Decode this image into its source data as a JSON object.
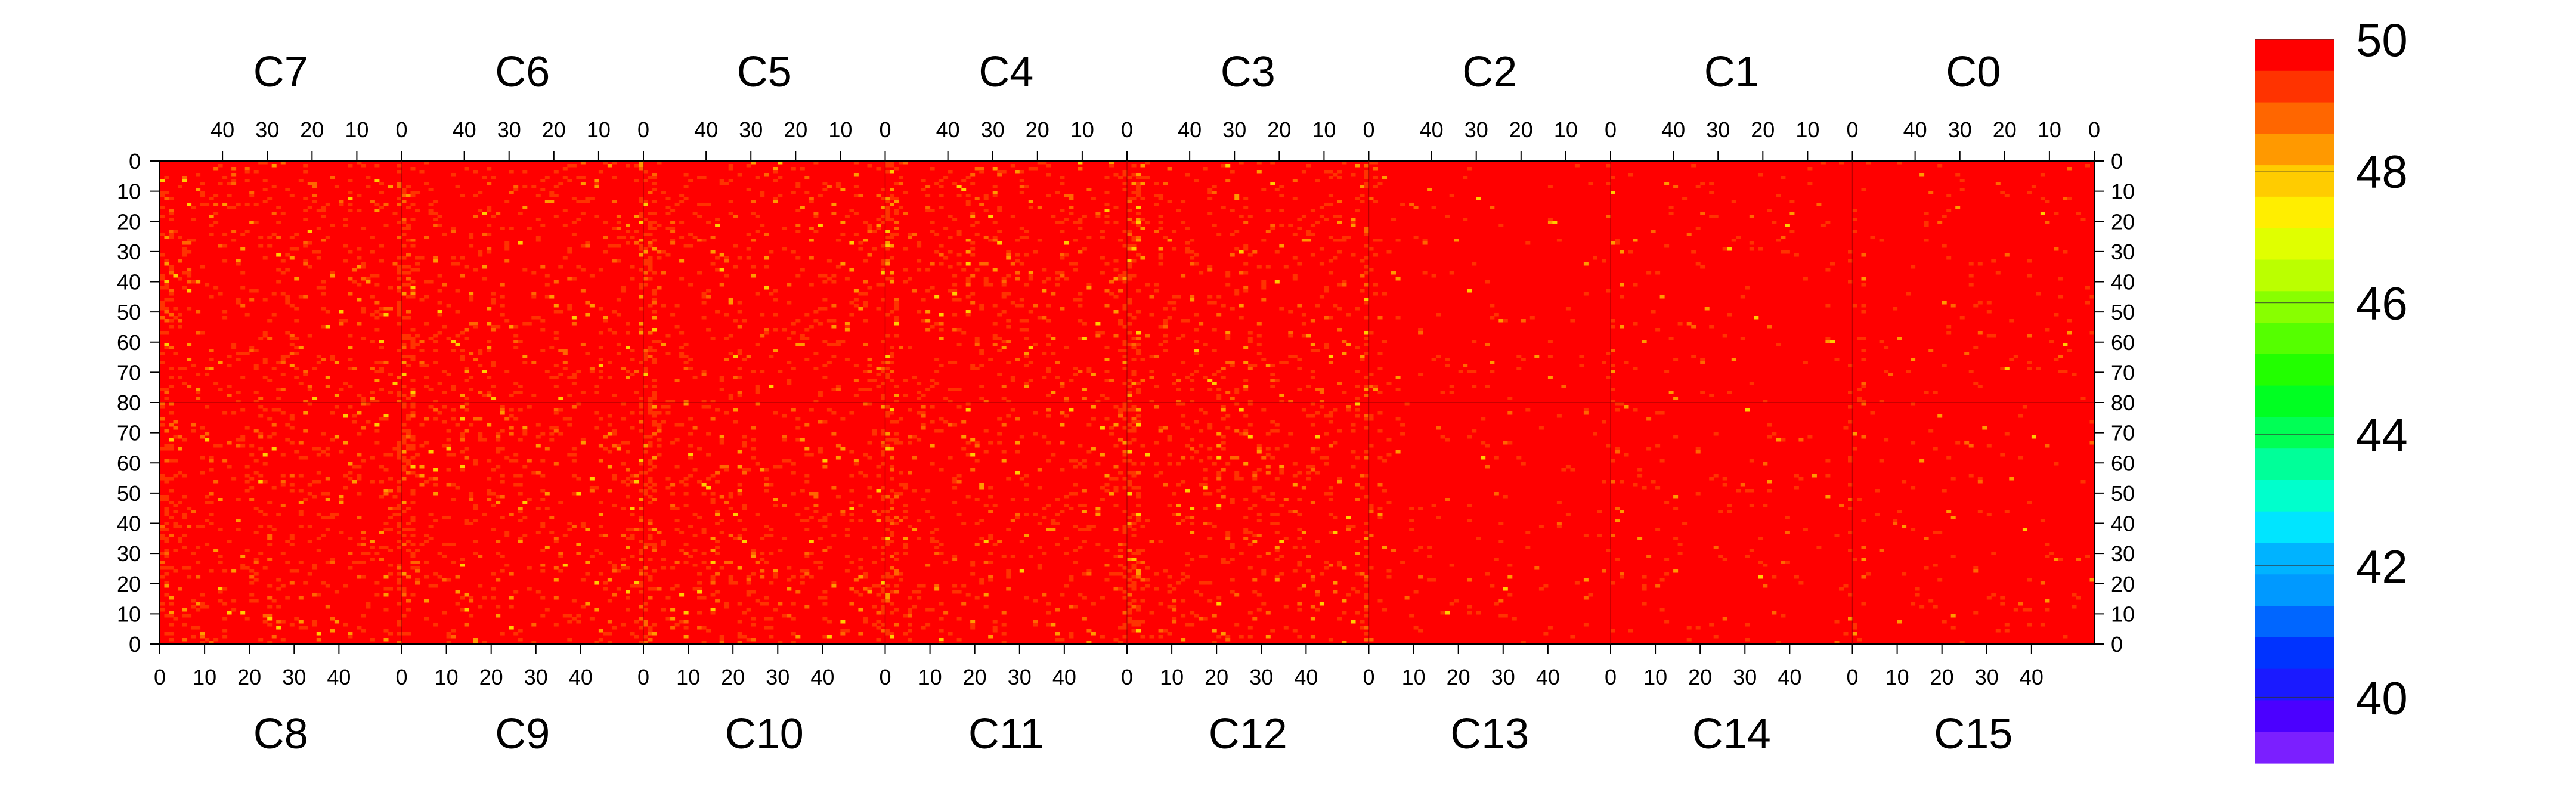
{
  "chart_data": {
    "type": "heatmap",
    "title": "",
    "xlabel": "",
    "ylabel": "",
    "top_panels": [
      "C7",
      "C6",
      "C5",
      "C4",
      "C3",
      "C2",
      "C1",
      "C0"
    ],
    "bottom_panels": [
      "C8",
      "C9",
      "C10",
      "C11",
      "C12",
      "C13",
      "C14",
      "C15"
    ],
    "top_x_ticks": [
      "40",
      "30",
      "20",
      "10",
      "0"
    ],
    "bottom_x_ticks": [
      "0",
      "10",
      "20",
      "30",
      "40"
    ],
    "panel_x_range": [
      0,
      54
    ],
    "left_y_ticks": [
      "0",
      "10",
      "20",
      "30",
      "40",
      "50",
      "60",
      "70",
      "80",
      "70",
      "60",
      "50",
      "40",
      "30",
      "20",
      "10",
      "0"
    ],
    "right_y_ticks": [
      "0",
      "10",
      "20",
      "30",
      "40",
      "50",
      "60",
      "70",
      "80",
      "70",
      "60",
      "50",
      "40",
      "30",
      "20",
      "10",
      "0"
    ],
    "half_y_range": [
      0,
      81
    ],
    "value_range": [
      39,
      50
    ],
    "colorbar_ticks": [
      "40",
      "42",
      "44",
      "46",
      "48",
      "50"
    ],
    "colorbar_values": [
      40,
      42,
      44,
      46,
      48,
      50
    ],
    "dominant_value": 50,
    "typical_cell_values": [
      49.5,
      49,
      48.5,
      48
    ],
    "colors": [
      "#7b1fff",
      "#4b00ff",
      "#1a1aff",
      "#0033ff",
      "#0066ff",
      "#0099ff",
      "#00b3ff",
      "#00e5ff",
      "#00ffcc",
      "#00ff99",
      "#00ff55",
      "#00ff22",
      "#22ff00",
      "#55ff00",
      "#88ff00",
      "#bbff00",
      "#e0ff00",
      "#ffee00",
      "#ffcc00",
      "#ff9900",
      "#ff6600",
      "#ff3300",
      "#ff0000"
    ],
    "grid": false
  }
}
